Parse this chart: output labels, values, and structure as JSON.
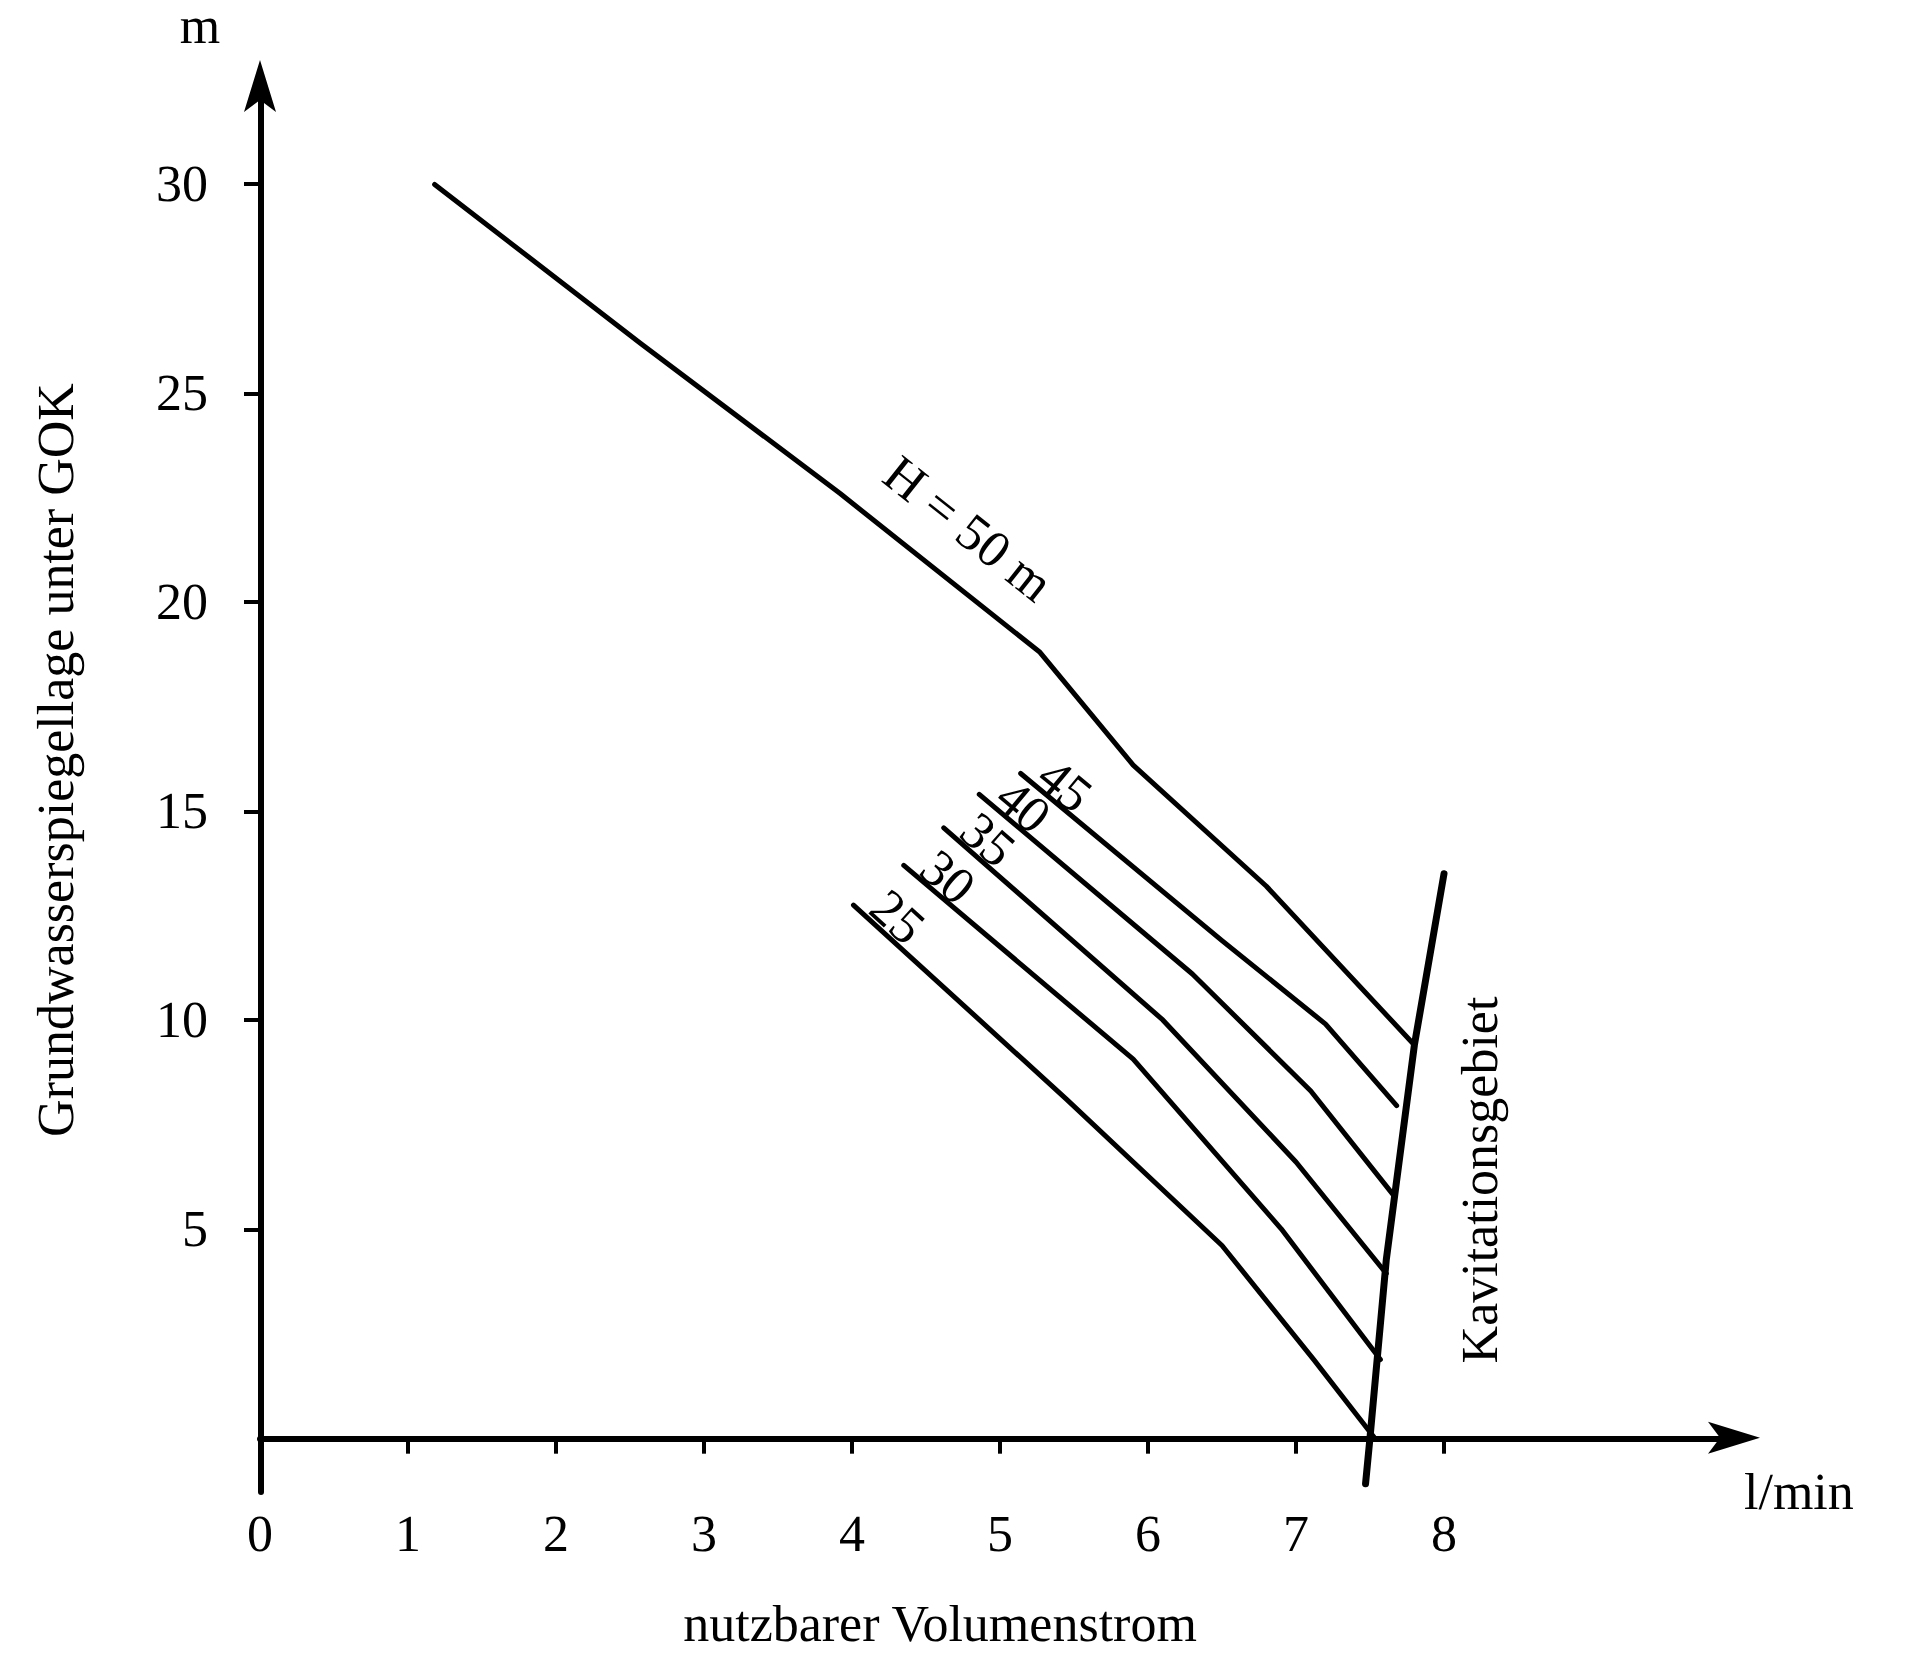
{
  "chart_data": {
    "type": "line",
    "xlabel": "nutzbarer Volumenstrom",
    "ylabel": "Grundwasserspiegellage unter GOK",
    "annotations": [
      "m",
      "l/min",
      "Kavitationsgebiet"
    ],
    "xlim": [
      0,
      10
    ],
    "ylim": [
      -1.3,
      32.5
    ],
    "xticks": [
      0,
      1,
      2,
      3,
      4,
      5,
      6,
      7,
      8
    ],
    "yticks": [
      5,
      10,
      15,
      20,
      25,
      30
    ],
    "grid": false,
    "legend": false,
    "marker": "none",
    "line_style": "solid",
    "series": [
      {
        "name": "H = 50 m",
        "color": "#000000",
        "x": [
          1.18,
          2.57,
          3.92,
          5.27,
          5.9,
          6.8,
          7.8
        ],
        "values": [
          30.0,
          26.2,
          22.6,
          18.8,
          16.1,
          13.2,
          9.4
        ]
      },
      {
        "name": "45",
        "color": "#000000",
        "x": [
          5.14,
          6.5,
          7.2,
          7.68
        ],
        "values": [
          15.9,
          11.9,
          9.9,
          7.95
        ]
      },
      {
        "name": "40",
        "color": "#000000",
        "x": [
          4.86,
          6.3,
          7.1,
          7.66
        ],
        "values": [
          15.4,
          11.1,
          8.3,
          5.8
        ]
      },
      {
        "name": "35",
        "color": "#000000",
        "x": [
          4.62,
          6.1,
          7.0,
          7.61
        ],
        "values": [
          14.6,
          10.0,
          6.6,
          3.93
        ]
      },
      {
        "name": "30",
        "color": "#000000",
        "x": [
          4.35,
          5.9,
          6.9,
          7.57
        ],
        "values": [
          13.7,
          9.06,
          5.0,
          1.87
        ]
      },
      {
        "name": "25",
        "color": "#000000",
        "x": [
          4.01,
          5.45,
          6.5,
          7.12,
          7.53
        ],
        "values": [
          12.75,
          8.1,
          4.6,
          1.87,
          0
        ]
      },
      {
        "color": "#000000",
        "x": [
          7.47,
          7.5,
          7.61,
          7.8,
          8.0
        ],
        "values": [
          -1.1,
          0,
          4.26,
          9.4,
          13.5
        ]
      }
    ]
  }
}
